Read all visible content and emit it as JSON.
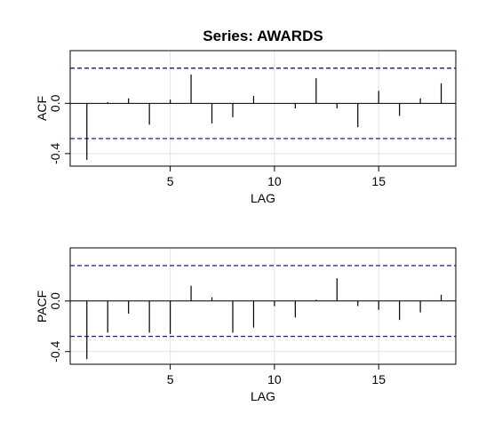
{
  "chart_data": [
    {
      "type": "bar",
      "title": "Series:  AWARDS",
      "xlabel": "LAG",
      "ylabel": "ACF",
      "xlim": [
        0.2,
        18.7
      ],
      "ylim": [
        -0.5,
        0.42
      ],
      "xticks": [
        5,
        10,
        15
      ],
      "yticks": [
        -0.4,
        0.0
      ],
      "ytick_labels": [
        "-0.4",
        "0.0"
      ],
      "grid": true,
      "confidence_bound": 0.28,
      "confidence_color": "#00008b",
      "x": [
        1,
        2,
        3,
        4,
        5,
        6,
        7,
        8,
        9,
        10,
        11,
        12,
        13,
        14,
        15,
        16,
        17,
        18
      ],
      "values": [
        -0.45,
        0.01,
        0.04,
        -0.17,
        0.03,
        0.23,
        -0.16,
        -0.11,
        0.06,
        0.0,
        -0.04,
        0.2,
        -0.04,
        -0.19,
        0.1,
        -0.1,
        0.04,
        0.16
      ]
    },
    {
      "type": "bar",
      "title": "",
      "xlabel": "LAG",
      "ylabel": "PACF",
      "xlim": [
        0.2,
        18.7
      ],
      "ylim": [
        -0.5,
        0.42
      ],
      "xticks": [
        5,
        10,
        15
      ],
      "yticks": [
        -0.4,
        0.0
      ],
      "ytick_labels": [
        "-0.4",
        "0.0"
      ],
      "grid": true,
      "confidence_bound": 0.28,
      "confidence_color": "#00008b",
      "x": [
        1,
        2,
        3,
        4,
        5,
        6,
        7,
        8,
        9,
        10,
        11,
        12,
        13,
        14,
        15,
        16,
        17,
        18
      ],
      "values": [
        -0.46,
        -0.25,
        -0.1,
        -0.25,
        -0.26,
        0.12,
        0.03,
        -0.25,
        -0.21,
        -0.04,
        -0.13,
        0.01,
        0.18,
        -0.04,
        -0.07,
        -0.15,
        -0.09,
        0.05
      ]
    }
  ]
}
